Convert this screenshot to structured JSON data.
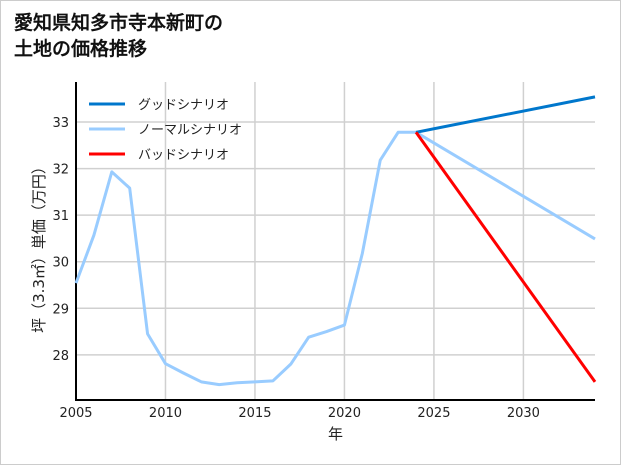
{
  "chart_data": {
    "type": "line",
    "title_lines": [
      "愛知県知多市寺本新町の",
      "土地の価格推移"
    ],
    "xlabel": "年",
    "ylabel": "坪（3.3㎡）単価（万円）",
    "xlim": [
      2005,
      2034
    ],
    "ylim": [
      27.03,
      33.86
    ],
    "xticks": [
      2005,
      2010,
      2015,
      2020,
      2025,
      2030
    ],
    "yticks": [
      28,
      29,
      30,
      31,
      32,
      33
    ],
    "grid": true,
    "legend_position": "top-left",
    "series": [
      {
        "name": "グッドシナリオ",
        "color": "#0077cc",
        "x": [
          2024,
          2034
        ],
        "y": [
          32.78,
          33.54
        ]
      },
      {
        "name": "ノーマルシナリオ",
        "color": "#99ccff",
        "x": [
          2005,
          2006,
          2007,
          2008,
          2009,
          2010,
          2011,
          2012,
          2013,
          2014,
          2015,
          2016,
          2017,
          2018,
          2019,
          2020,
          2021,
          2022,
          2023,
          2024,
          2034
        ],
        "y": [
          29.54,
          30.57,
          31.93,
          31.58,
          28.45,
          27.81,
          27.61,
          27.42,
          27.36,
          27.4,
          27.42,
          27.44,
          27.8,
          28.38,
          28.5,
          28.64,
          30.18,
          32.18,
          32.78,
          32.78,
          30.49
        ]
      },
      {
        "name": "バッドシナリオ",
        "color": "#ff0000",
        "x": [
          2024,
          2034
        ],
        "y": [
          32.78,
          27.42
        ]
      }
    ]
  }
}
